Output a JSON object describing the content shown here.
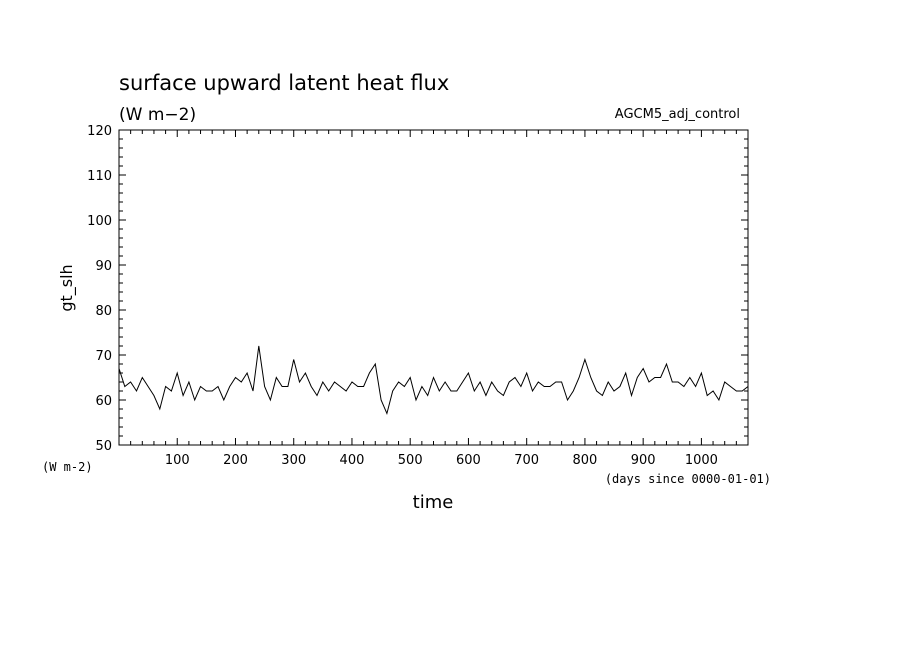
{
  "chart_data": {
    "type": "line",
    "title": "surface upward latent heat flux",
    "subtitle": "(W m−2)",
    "annotation": "AGCM5_adj_control",
    "ylabel": "gt_slh",
    "yunits": "(W m-2)",
    "xlabel": "time",
    "xunits": "(days since 0000-01-01)",
    "xlim": [
      0,
      1080
    ],
    "ylim": [
      50,
      120
    ],
    "x_ticks": [
      100,
      200,
      300,
      400,
      500,
      600,
      700,
      800,
      900,
      1000
    ],
    "y_ticks": [
      50,
      60,
      70,
      80,
      90,
      100,
      110,
      120
    ],
    "x_tick_labels": [
      "100",
      "200",
      "300",
      "400",
      "500",
      "600",
      "700",
      "800",
      "900",
      "1000"
    ],
    "y_tick_labels": [
      "50",
      "60",
      "70",
      "80",
      "90",
      "100",
      "110",
      "120"
    ],
    "grid": false,
    "color": "#000000",
    "series": [
      {
        "x": [
          0,
          10,
          20,
          30,
          40,
          50,
          60,
          70,
          80,
          90,
          100,
          110,
          120,
          130,
          140,
          150,
          160,
          170,
          180,
          190,
          200,
          210,
          220,
          230,
          240,
          250,
          260,
          270,
          280,
          290,
          300,
          310,
          320,
          330,
          340,
          350,
          360,
          370,
          380,
          390,
          400,
          410,
          420,
          430,
          440,
          450,
          460,
          470,
          480,
          490,
          500,
          510,
          520,
          530,
          540,
          550,
          560,
          570,
          580,
          590,
          600,
          610,
          620,
          630,
          640,
          650,
          660,
          670,
          680,
          690,
          700,
          710,
          720,
          730,
          740,
          750,
          760,
          770,
          780,
          790,
          800,
          810,
          820,
          830,
          840,
          850,
          860,
          870,
          880,
          890,
          900,
          910,
          920,
          930,
          940,
          950,
          960,
          970,
          980,
          990,
          1000,
          1010,
          1020,
          1030,
          1040,
          1050,
          1060,
          1070,
          1080
        ],
        "y": [
          67,
          63,
          64,
          62,
          65,
          63,
          61,
          58,
          63,
          62,
          66,
          61,
          64,
          60,
          63,
          62,
          62,
          63,
          60,
          63,
          65,
          64,
          66,
          62,
          72,
          63,
          60,
          65,
          63,
          63,
          69,
          64,
          66,
          63,
          61,
          64,
          62,
          64,
          63,
          62,
          64,
          63,
          63,
          66,
          68,
          60,
          57,
          62,
          64,
          63,
          65,
          60,
          63,
          61,
          65,
          62,
          64,
          62,
          62,
          64,
          66,
          62,
          64,
          61,
          64,
          62,
          61,
          64,
          65,
          63,
          66,
          62,
          64,
          63,
          63,
          64,
          64,
          60,
          62,
          65,
          69,
          65,
          62,
          61,
          64,
          62,
          63,
          66,
          61,
          65,
          67,
          64,
          65,
          65,
          68,
          64,
          64,
          63,
          65,
          63,
          66,
          61,
          62,
          60,
          64,
          63,
          62,
          62,
          63
        ]
      }
    ]
  }
}
